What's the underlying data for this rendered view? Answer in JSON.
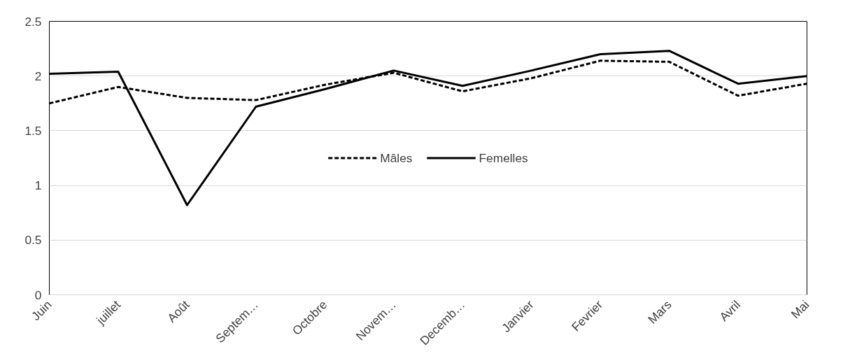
{
  "chart_data": {
    "type": "line",
    "categories": [
      "Juin",
      "juillet",
      "Août",
      "Septem…",
      "Octobre",
      "Novem…",
      "Decemb…",
      "Janvier",
      "Fevrier",
      "Mars",
      "Avril",
      "Mai"
    ],
    "series": [
      {
        "name": "Mâles",
        "color": "#000000",
        "line_style": "dashed",
        "values": [
          1.75,
          1.9,
          1.8,
          1.78,
          1.92,
          2.03,
          1.86,
          1.98,
          2.14,
          2.13,
          1.82,
          1.93
        ]
      },
      {
        "name": "Femelles",
        "color": "#000000",
        "line_style": "solid",
        "values": [
          2.02,
          2.04,
          0.82,
          1.72,
          1.88,
          2.05,
          1.91,
          2.05,
          2.2,
          2.23,
          1.93,
          2.0
        ]
      }
    ],
    "ylim": [
      0,
      2.5
    ],
    "yticks": [
      0,
      {
        "value": 0.5,
        "label": "0.5"
      },
      1,
      {
        "value": 1.5,
        "label": "1.5"
      },
      2,
      {
        "value": 2.5,
        "label": "2.5"
      }
    ],
    "grid": "y",
    "legend": "center",
    "marker": "none"
  }
}
